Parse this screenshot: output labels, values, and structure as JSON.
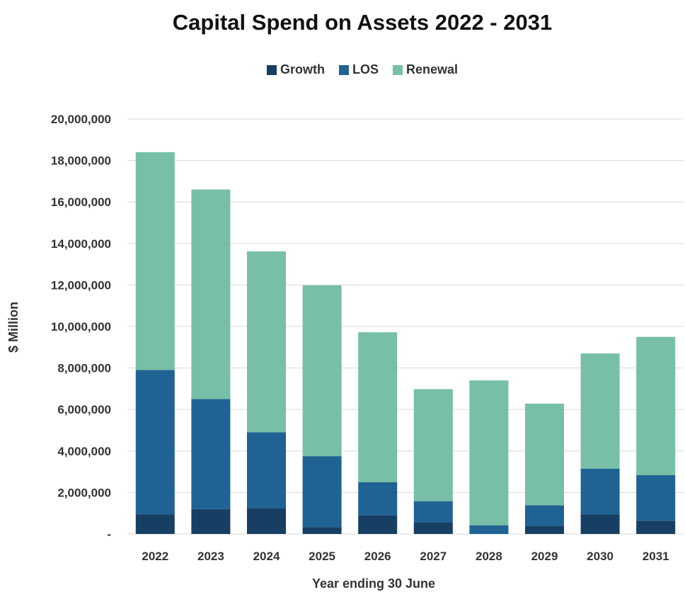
{
  "chart_data": {
    "type": "bar",
    "stacked": true,
    "title": "Capital Spend on Assets 2022 - 2031",
    "xlabel": "Year ending 30 June",
    "ylabel": "$ Million",
    "ylim": [
      0,
      20000000
    ],
    "yticks": [
      0,
      2000000,
      4000000,
      6000000,
      8000000,
      10000000,
      12000000,
      14000000,
      16000000,
      18000000,
      20000000
    ],
    "ytick_labels": [
      "-",
      "2,000,000",
      "4,000,000",
      "6,000,000",
      "8,000,000",
      "10,000,000",
      "12,000,000",
      "14,000,000",
      "16,000,000",
      "18,000,000",
      "20,000,000"
    ],
    "grid": true,
    "legend_position": "top",
    "categories": [
      "2022",
      "2023",
      "2024",
      "2025",
      "2026",
      "2027",
      "2028",
      "2029",
      "2030",
      "2031"
    ],
    "series": [
      {
        "name": "Growth",
        "color": "#163f63",
        "values": [
          950000,
          1200000,
          1250000,
          330000,
          900000,
          560000,
          0,
          400000,
          950000,
          640000
        ]
      },
      {
        "name": "LOS",
        "color": "#1f6394",
        "values": [
          6950000,
          5300000,
          3650000,
          3420000,
          1600000,
          1020000,
          420000,
          980000,
          2200000,
          2200000
        ]
      },
      {
        "name": "Renewal",
        "color": "#77bfa6",
        "values": [
          10500000,
          10100000,
          8720000,
          8230000,
          7220000,
          5400000,
          6980000,
          4900000,
          5550000,
          6660000
        ]
      }
    ]
  }
}
